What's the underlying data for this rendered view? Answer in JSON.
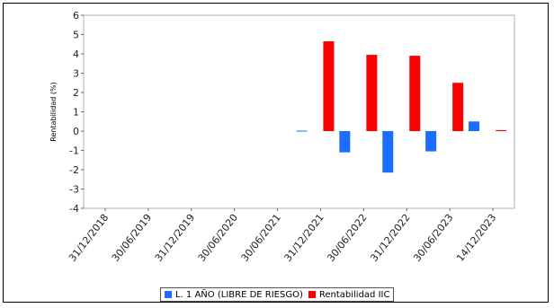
{
  "chart_data": {
    "type": "bar",
    "title": "",
    "xlabel": "",
    "ylabel": "Rentabilidad (%)",
    "ylim": [
      -4,
      6
    ],
    "yticks": [
      6,
      5,
      4,
      3,
      2,
      1,
      0,
      -1,
      -2,
      -3,
      -4
    ],
    "grid": false,
    "legend_position": "bottom",
    "categories": [
      "31/12/2018",
      "30/06/2019",
      "31/12/2019",
      "30/06/2020",
      "30/06/2021",
      "31/12/2021",
      "30/06/2022",
      "31/12/2022",
      "30/06/2023",
      "14/12/2023"
    ],
    "series": [
      {
        "name": "L. 1 AÑO (LIBRE DE RIESGO)",
        "color": "#1a6dff",
        "values": [
          null,
          null,
          null,
          null,
          null,
          0.0,
          -1.1,
          -2.15,
          -1.05,
          0.5
        ]
      },
      {
        "name": "Rentabilidad IIC",
        "color": "#ff0000",
        "values": [
          null,
          null,
          null,
          null,
          null,
          4.65,
          3.95,
          3.9,
          2.5,
          0.05
        ]
      }
    ]
  }
}
